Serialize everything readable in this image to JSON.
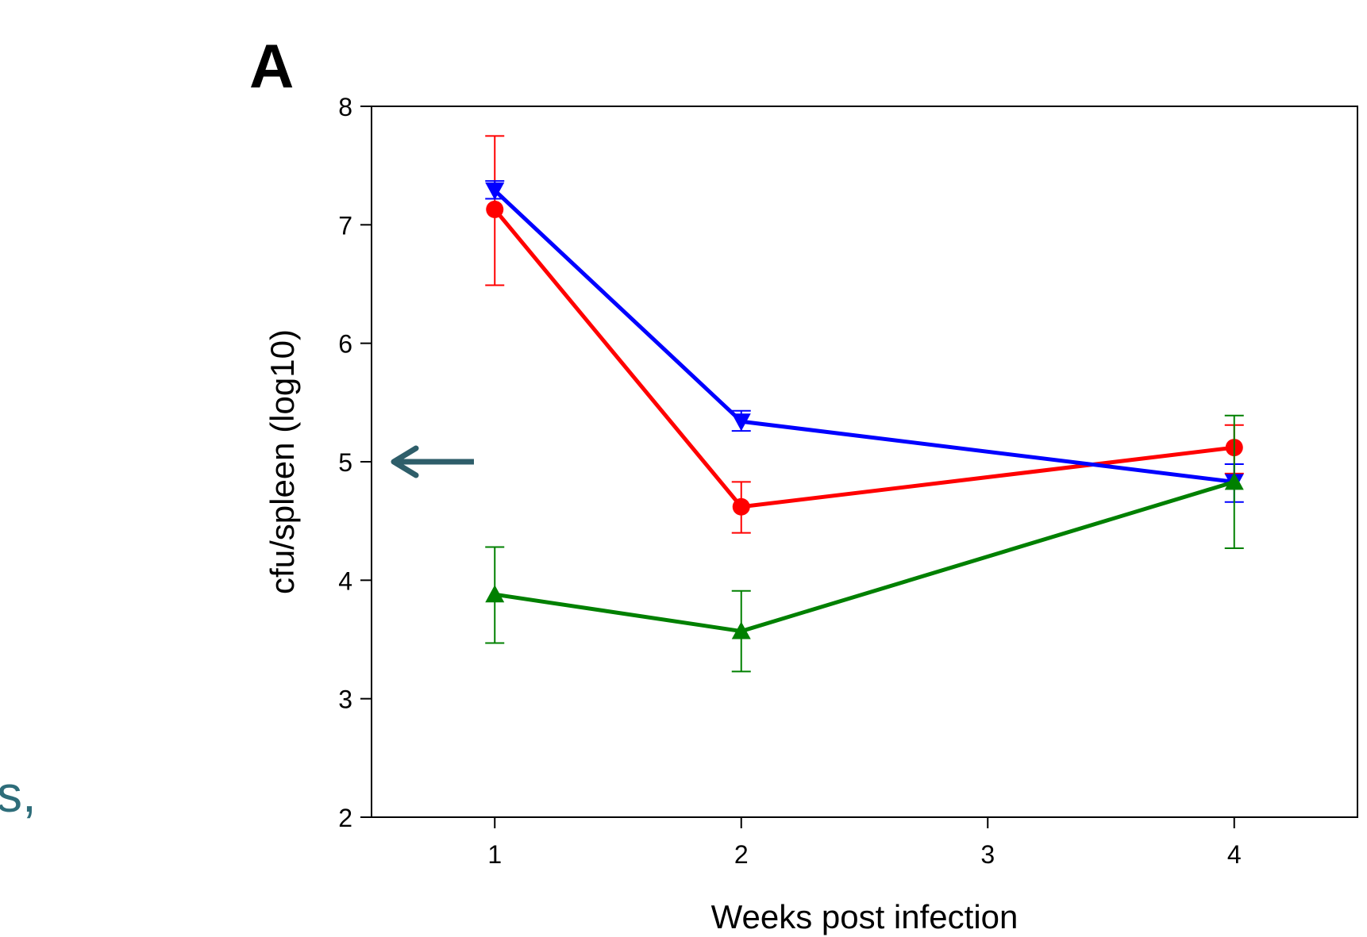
{
  "panel_label": "A",
  "fragment_text": "s,",
  "colors": {
    "red": "#ff0000",
    "blue": "#0000ff",
    "green": "#008000",
    "arrow": "#2e5e6a",
    "fragment": "#2e6d7a"
  },
  "annotation": {
    "type": "arrow-left",
    "y_value": 5.0,
    "color_key": "arrow"
  },
  "chart_data": {
    "type": "line",
    "xlabel": "Weeks post infection",
    "ylabel": "cfu/spleen (log10)",
    "xlim": [
      0.5,
      4.5
    ],
    "ylim": [
      2,
      8
    ],
    "xticks": [
      1,
      2,
      3,
      4
    ],
    "yticks": [
      2,
      3,
      4,
      5,
      6,
      7,
      8
    ],
    "grid": false,
    "series": [
      {
        "color": "#ff0000",
        "marker": "circle",
        "x": [
          1,
          2,
          4
        ],
        "y": [
          7.13,
          4.62,
          5.12
        ],
        "err_low": [
          6.49,
          4.4,
          4.9
        ],
        "err_high": [
          7.75,
          4.83,
          5.31
        ]
      },
      {
        "color": "#0000ff",
        "marker": "triangle-down",
        "x": [
          1,
          2,
          4
        ],
        "y": [
          7.29,
          5.34,
          4.83
        ],
        "err_low": [
          7.22,
          5.26,
          4.66
        ],
        "err_high": [
          7.37,
          5.43,
          4.98
        ]
      },
      {
        "color": "#008000",
        "marker": "triangle-up",
        "x": [
          1,
          2,
          4
        ],
        "y": [
          3.88,
          3.57,
          4.83
        ],
        "err_low": [
          3.47,
          3.23,
          4.27
        ],
        "err_high": [
          4.28,
          3.91,
          5.39
        ]
      }
    ]
  }
}
